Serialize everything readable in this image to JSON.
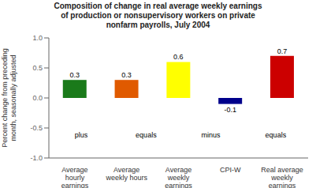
{
  "chart_data": {
    "type": "bar",
    "title": "Composition of change in real average weekly earnings\nof production or nonsupervisory workers on private\nnonfarm payrolls, July 2004",
    "ylabel": "Percent change from preceding\nmonth, seasonally adjusted",
    "categories": [
      "Average\nhourly\nearnings",
      "Average\nweekly hours",
      "Average\nweekly\nearnings",
      "CPI-W",
      "Real average\nweekly\nearnings"
    ],
    "values": [
      0.3,
      0.3,
      0.6,
      -0.1,
      0.7
    ],
    "colors": [
      "#1a7a1a",
      "#e05a00",
      "#ffff00",
      "#00008b",
      "#cc0000"
    ],
    "ylim": [
      -1.0,
      1.0
    ],
    "yticks": [
      {
        "value": -1.0,
        "label": "-1.0"
      },
      -0.5,
      {
        "value": 0.0,
        "label": "0.0"
      },
      0.5,
      {
        "value": 1.0,
        "label": "1.0"
      }
    ],
    "data_labels": true,
    "annotations": [
      "plus",
      "equals",
      "minus",
      "equals"
    ],
    "grid": false
  }
}
